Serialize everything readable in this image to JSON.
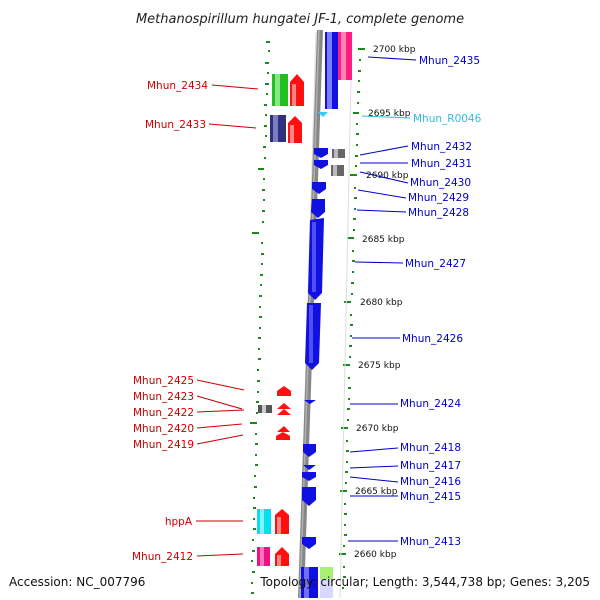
{
  "title": "Methanospirillum hungatei JF-1, complete genome",
  "footer": {
    "accession": "Accession: NC_007796",
    "topology": "Topology: circular; Length: 3,544,738 bp; Genes: 3,205"
  },
  "colors": {
    "red_label": "#cc0000",
    "blue_label": "#0000cc",
    "cyan_label": "#33bbdd",
    "backbone": "#808080",
    "tick": "#1a8a1a"
  },
  "kbp_labels": [
    "2700 kbp",
    "2695 kbp",
    "2690 kbp",
    "2685 kbp",
    "2680 kbp",
    "2675 kbp",
    "2670 kbp",
    "2665 kbp",
    "2660 kbp"
  ],
  "left_labels": [
    "Mhun_2434",
    "Mhun_2433",
    "Mhun_2425",
    "Mhun_2423",
    "Mhun_2422",
    "Mhun_2420",
    "Mhun_2419",
    "hppA",
    "Mhun_2412"
  ],
  "right_labels": [
    "Mhun_2435",
    "Mhun_R0046",
    "Mhun_2432",
    "Mhun_2431",
    "Mhun_2430",
    "Mhun_2429",
    "Mhun_2428",
    "Mhun_2427",
    "Mhun_2426",
    "Mhun_2424",
    "Mhun_2418",
    "Mhun_2417",
    "Mhun_2416",
    "Mhun_2415",
    "Mhun_2413"
  ]
}
